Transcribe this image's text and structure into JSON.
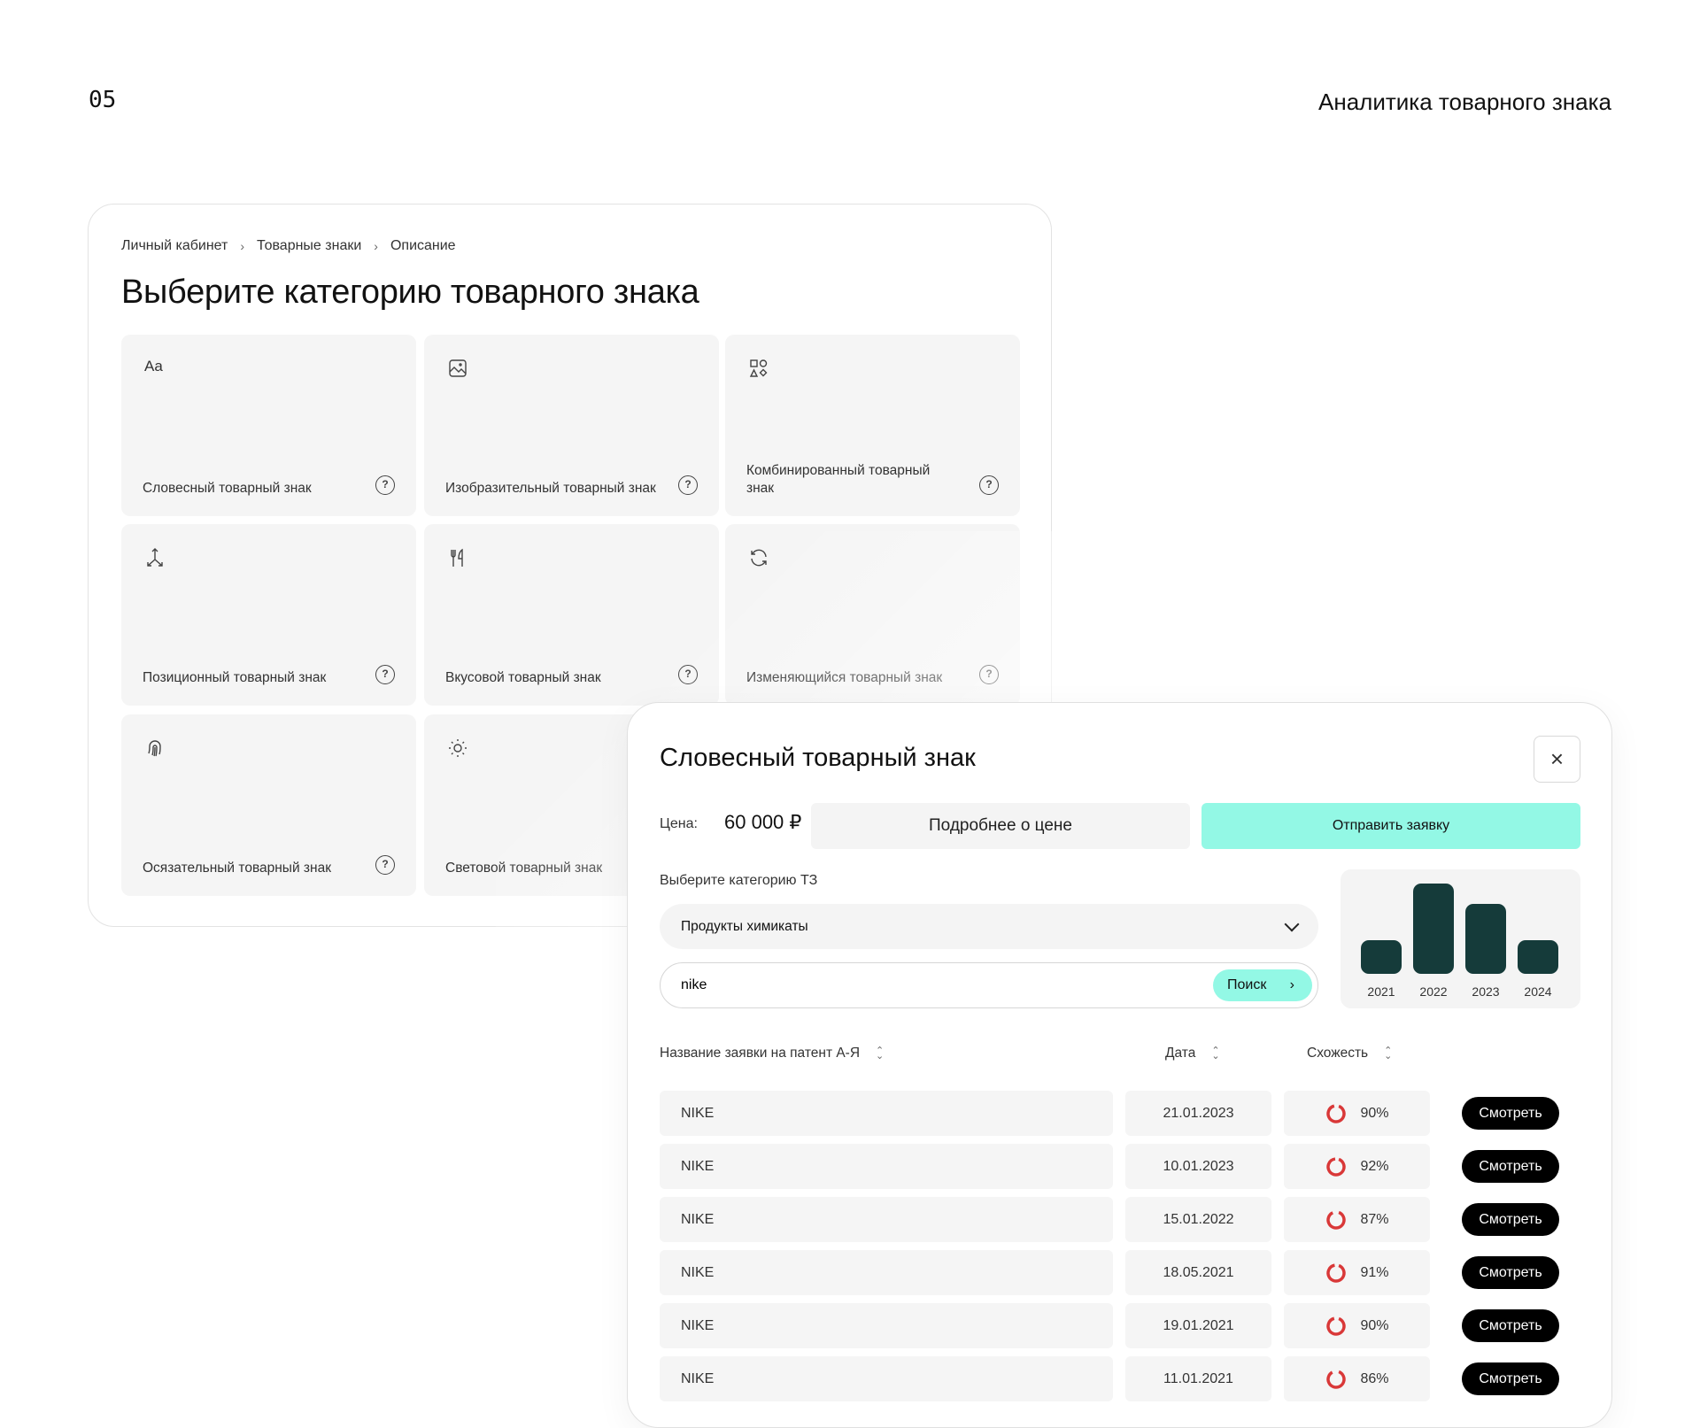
{
  "page": {
    "number": "05",
    "title": "Аналитика товарного знака"
  },
  "breadcrumb": [
    "Личный кабинет",
    "Товарные знаки",
    "Описание"
  ],
  "heading": "Выберите категорию товарного знака",
  "categories": [
    {
      "label": "Словесный товарный знак",
      "icon": "text-aa-icon",
      "icon_text": "Aa"
    },
    {
      "label": "Изобразительный товарный знак",
      "icon": "image-icon"
    },
    {
      "label": "Комбинированный товарный знак",
      "icon": "shapes-icon"
    },
    {
      "label": "Позиционный товарный знак",
      "icon": "axes-arrows-icon"
    },
    {
      "label": "Вкусовой товарный знак",
      "icon": "fork-knife-icon"
    },
    {
      "label": "Изменяющийся товарный знак",
      "icon": "refresh-icon"
    },
    {
      "label": "Осязательный товарный знак",
      "icon": "fingerprint-icon"
    },
    {
      "label": "Световой товарный знак",
      "icon": "sun-icon"
    }
  ],
  "help_glyph": "?",
  "modal": {
    "title": "Словесный товарный знак",
    "close_glyph": "×",
    "price_label": "Цена:",
    "price_value": "60 000 ₽",
    "more_button": "Подробнее о цене",
    "submit_button": "Отправить заявку",
    "category_label": "Выберите категорию ТЗ",
    "category_value": "Продукты химикаты",
    "search_value": "nike",
    "search_button": "Поиск",
    "accent": "#93f8e5"
  },
  "chart_data": {
    "type": "bar",
    "categories": [
      "2021",
      "2022",
      "2023",
      "2024"
    ],
    "values": [
      1,
      2.7,
      2.1,
      1
    ],
    "bar_color": "#153b3a",
    "grid": false
  },
  "table": {
    "headers": [
      "Название заявки на патент А-Я",
      "Дата",
      "Схожесть"
    ],
    "sort_glyph": "⌃⌄",
    "action_label": "Смотреть",
    "ring_color": "#d93838",
    "rows": [
      {
        "name": "NIKE",
        "date": "21.01.2023",
        "similarity": "90%"
      },
      {
        "name": "NIKE",
        "date": "10.01.2023",
        "similarity": "92%"
      },
      {
        "name": "NIKE",
        "date": "15.01.2022",
        "similarity": "87%"
      },
      {
        "name": "NIKE",
        "date": "18.05.2021",
        "similarity": "91%"
      },
      {
        "name": "NIKE",
        "date": "19.01.2021",
        "similarity": "90%"
      },
      {
        "name": "NIKE",
        "date": "11.01.2021",
        "similarity": "86%"
      }
    ]
  }
}
